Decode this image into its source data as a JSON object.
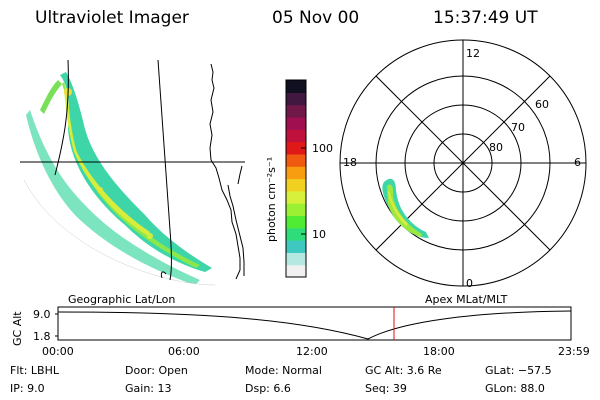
{
  "header": {
    "instrument": "Ultraviolet Imager",
    "date": "05 Nov 00",
    "time": "15:37:49 UT"
  },
  "geo_panel": {
    "label": "Geographic Lat/Lon"
  },
  "colorbar": {
    "unit_label": "photon cm⁻²s⁻¹",
    "ticks": [
      "100",
      "10"
    ],
    "colors": [
      "#f0f0f0",
      "#b4e8e0",
      "#3ec8c0",
      "#2edc7a",
      "#50ec34",
      "#9cf034",
      "#d6f03c",
      "#f0d020",
      "#f89c10",
      "#f05a10",
      "#e01818",
      "#c0103c",
      "#a01050",
      "#701848",
      "#401840",
      "#101020"
    ]
  },
  "polar_panel": {
    "label": "Apex MLat/MLT",
    "mlt_labels": {
      "top": "12",
      "right": "6",
      "bottom": "0",
      "left": "18"
    },
    "lat_labels": [
      "60",
      "70",
      "80"
    ]
  },
  "altitude_plot": {
    "ylabel": "GC Alt",
    "yticks": [
      "9.0",
      "1.8"
    ],
    "xticks": [
      "00:00",
      "06:00",
      "12:00",
      "18:00",
      "23:59"
    ],
    "current_time_marker_fraction": 0.655
  },
  "footer": {
    "flt": "Flt: LBHL",
    "ip": "IP:  9.0",
    "door": "Door: Open",
    "gain": "Gain: 13",
    "mode": "Mode: Normal",
    "dsp": "Dsp:     6.6",
    "gc_alt": "GC Alt: 3.6 Re",
    "seq": "Seq: 39",
    "glat": "GLat: −57.5",
    "glon": "GLon: 88.0"
  }
}
